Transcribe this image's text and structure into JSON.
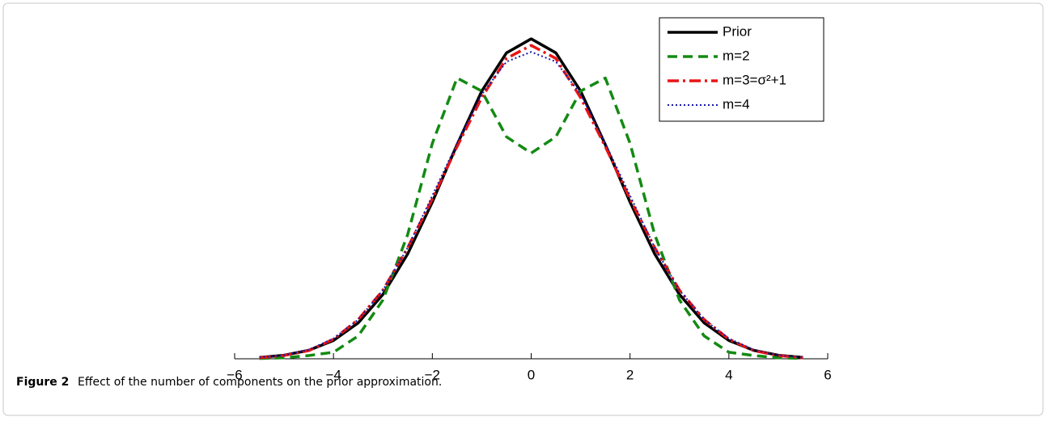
{
  "chart_data": {
    "type": "line",
    "x": [
      -5.5,
      -5,
      -4.5,
      -4,
      -3.5,
      -3,
      -2.5,
      -2,
      -1.5,
      -1,
      -0.5,
      0,
      0.5,
      1,
      1.5,
      2,
      2.5,
      3,
      3.5,
      4,
      4.5,
      5,
      5.5
    ],
    "series": [
      {
        "name": "Prior",
        "color": "#000000",
        "dash": "solid",
        "width": 3.5,
        "values": [
          0.004,
          0.011,
          0.026,
          0.056,
          0.11,
          0.197,
          0.321,
          0.48,
          0.656,
          0.82,
          0.937,
          0.98,
          0.937,
          0.82,
          0.656,
          0.48,
          0.321,
          0.197,
          0.11,
          0.056,
          0.026,
          0.011,
          0.004
        ]
      },
      {
        "name": "m=2",
        "color": "#138a13",
        "dash": "dashed",
        "width": 3.5,
        "values": [
          0.001,
          0.003,
          0.01,
          0.02,
          0.07,
          0.18,
          0.38,
          0.66,
          0.86,
          0.82,
          0.68,
          0.63,
          0.68,
          0.82,
          0.86,
          0.66,
          0.38,
          0.18,
          0.07,
          0.02,
          0.01,
          0.003,
          0.001
        ]
      },
      {
        "name": "m=3=σ²+1",
        "color": "#e81414",
        "dash": "dashdot",
        "width": 3.5,
        "values": [
          0.003,
          0.01,
          0.025,
          0.06,
          0.12,
          0.21,
          0.34,
          0.49,
          0.65,
          0.8,
          0.92,
          0.96,
          0.92,
          0.8,
          0.65,
          0.49,
          0.34,
          0.21,
          0.12,
          0.06,
          0.025,
          0.01,
          0.003
        ]
      },
      {
        "name": "m=4",
        "color": "#1a1aa8",
        "dash": "dotted",
        "width": 2,
        "values": [
          0.004,
          0.011,
          0.028,
          0.062,
          0.12,
          0.21,
          0.34,
          0.5,
          0.66,
          0.81,
          0.91,
          0.94,
          0.91,
          0.81,
          0.66,
          0.5,
          0.34,
          0.21,
          0.12,
          0.062,
          0.028,
          0.011,
          0.004
        ]
      }
    ],
    "xlim": [
      -6,
      6
    ],
    "xticks": [
      {
        "value": -6,
        "label": "−6"
      },
      {
        "value": -4,
        "label": "−4"
      },
      {
        "value": -2,
        "label": "−2"
      },
      0,
      2,
      4,
      6
    ],
    "ylim": [
      0,
      1
    ],
    "legend": "upper right",
    "caption": {
      "label": "Figure 2",
      "text": "Effect of the number of components on the prior approximation."
    }
  }
}
